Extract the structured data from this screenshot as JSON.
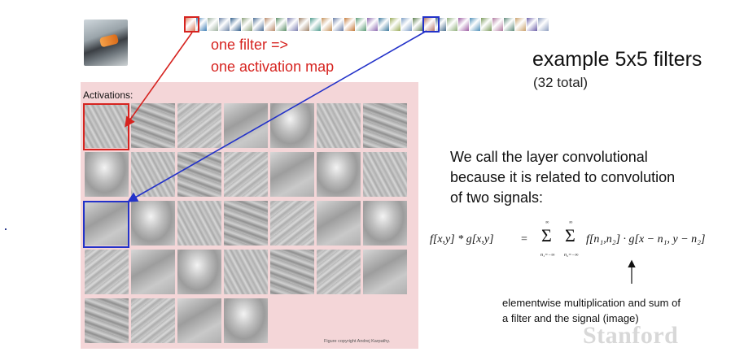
{
  "filters": {
    "colors": [
      "#d97a5c",
      "#3f7fb6",
      "#9fb2a0",
      "#6e86a8",
      "#2f5c8a",
      "#8aa07a",
      "#4d6f96",
      "#b98a6a",
      "#5c8f68",
      "#7c7fb0",
      "#a0846a",
      "#4f9b8d",
      "#c4925a",
      "#6a7ea6",
      "#c47a3a",
      "#5a9a74",
      "#8d6ab0",
      "#3d7a9e",
      "#9aab59",
      "#7d9ec4",
      "#5c7e4f",
      "#b3766b",
      "#4a6f8f",
      "#8fae7a",
      "#9d5da3",
      "#4f8fb8",
      "#7a9a5c",
      "#b07aa0",
      "#5f8a7a",
      "#c9a06a",
      "#6b5fa8",
      "#8f9fc0"
    ]
  },
  "labels": {
    "one_filter": "one filter =>",
    "one_activation_map": "one activation map",
    "title": "example 5x5 filters",
    "subtitle": "(32 total)",
    "activations": "Activations:",
    "credit": "Figure copyright Andrej Karpathy."
  },
  "explanation": {
    "line1": "We call the layer convolutional",
    "line2": "because it is related to convolution",
    "line3": "of two signals:"
  },
  "formula": {
    "lhs": "f[x,y] * g[x,y]",
    "eq": "=",
    "sum_upper": "∞",
    "sum_lower_1": "n₁=−∞",
    "sum_lower_2": "n₂=−∞",
    "sigma": "Σ",
    "rhs": "f[n₁,n₂] · g[x − n₁, y − n₂]"
  },
  "note": {
    "line1": "elementwise multiplication and sum of",
    "line2": "a filter and the signal (image)"
  },
  "watermark": "Stanford",
  "icons": {
    "input_image": "car-taillight-image"
  }
}
